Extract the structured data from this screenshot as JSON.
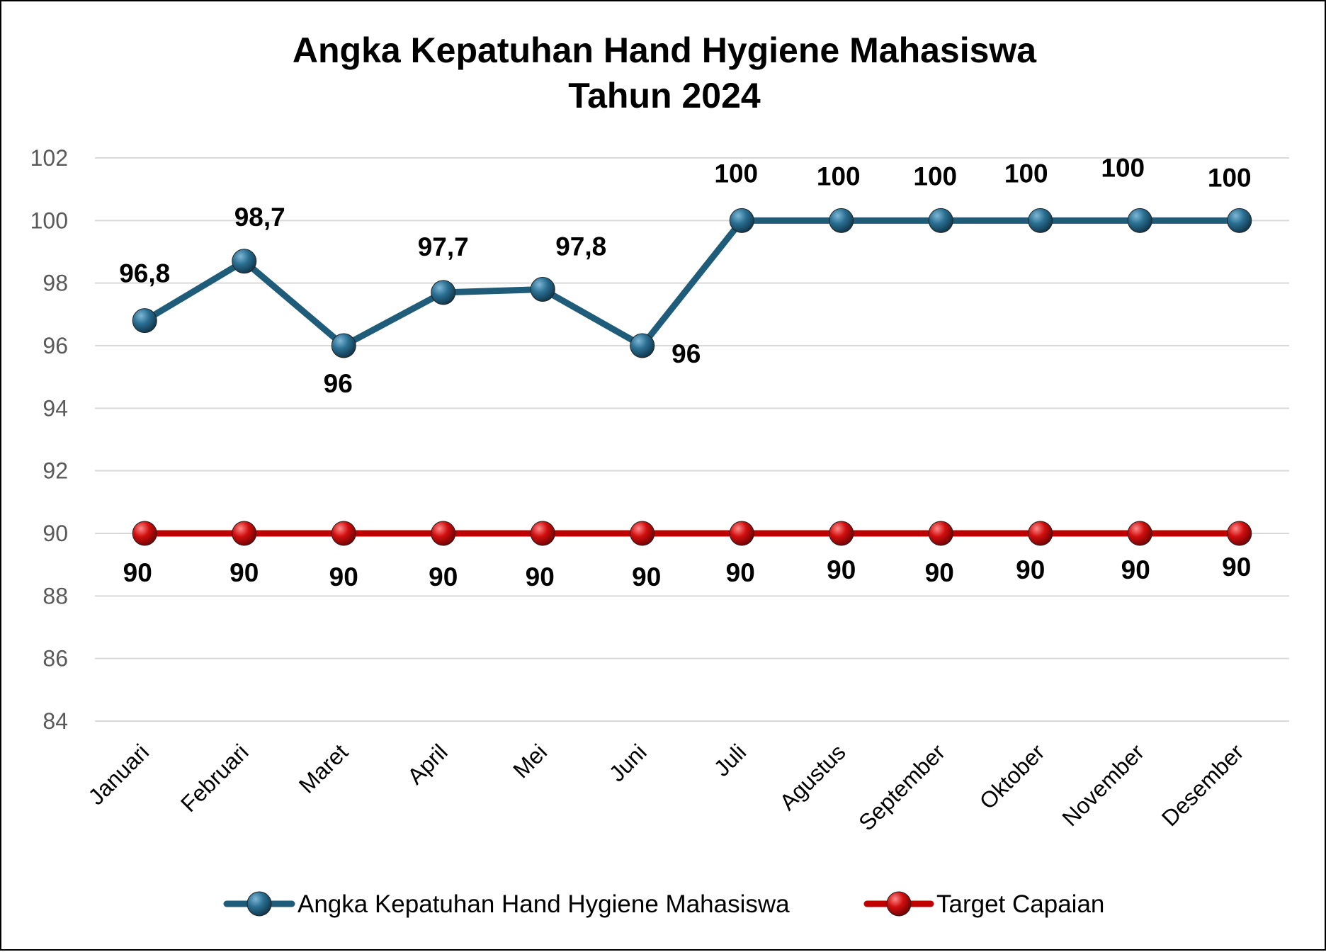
{
  "chart_data": {
    "type": "line",
    "title": [
      "Angka Kepatuhan Hand Hygiene Mahasiswa",
      "Tahun 2024"
    ],
    "categories": [
      "Januari",
      "Februari",
      "Maret",
      "April",
      "Mei",
      "Juni",
      "Juli",
      "Agustus",
      "September",
      "Oktober",
      "November",
      "Desember"
    ],
    "series": [
      {
        "name": "Angka Kepatuhan Hand Hygiene Mahasiswa",
        "color": "#1F5C7A",
        "values": [
          96.8,
          98.7,
          96,
          97.7,
          97.8,
          96,
          100,
          100,
          100,
          100,
          100,
          100
        ],
        "labels": [
          "96,8",
          "98,7",
          "96",
          "97,7",
          "97,8",
          "96",
          "100",
          "100",
          "100",
          "100",
          "100",
          "100"
        ]
      },
      {
        "name": "Target Capaian",
        "color": "#C00000",
        "values": [
          90,
          90,
          90,
          90,
          90,
          90,
          90,
          90,
          90,
          90,
          90,
          90
        ],
        "labels": [
          "90",
          "90",
          "90",
          "90",
          "90",
          "90",
          "90",
          "90",
          "90",
          "90",
          "90",
          "90"
        ]
      }
    ],
    "ylim": [
      84,
      102
    ],
    "yticks": [
      84,
      86,
      88,
      90,
      92,
      94,
      96,
      98,
      100,
      102
    ],
    "grid": true,
    "legend": "bottom"
  }
}
